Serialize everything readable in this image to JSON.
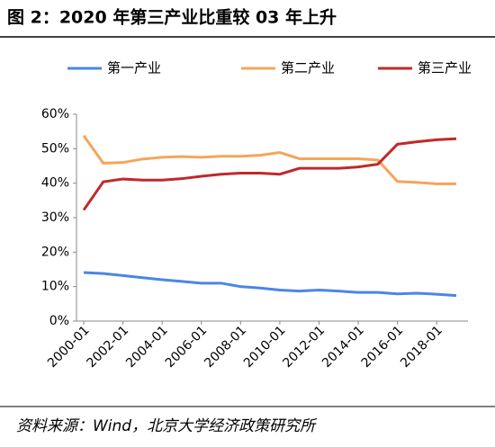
{
  "chart_data": {
    "type": "line",
    "title": "图 2：2020 年第三产业比重较 03 年上升",
    "source": "资料来源：Wind，北京大学经济政策研究所",
    "categories": [
      "2000-01",
      null,
      "2002-01",
      null,
      "2004-01",
      null,
      "2006-01",
      null,
      "2008-01",
      null,
      "2010-01",
      null,
      "2012-01",
      null,
      "2014-01",
      null,
      "2016-01",
      null,
      "2018-01",
      null
    ],
    "series": [
      {
        "name": "第一产业",
        "color": "#4a86e8",
        "values": [
          14.1,
          13.8,
          13.2,
          12.6,
          12.0,
          11.5,
          11.0,
          11.0,
          10.0,
          9.6,
          9.0,
          8.7,
          9.0,
          8.7,
          8.3,
          8.3,
          7.9,
          8.1,
          7.8,
          7.4
        ]
      },
      {
        "name": "第二产业",
        "color": "#f5a55a",
        "values": [
          53.8,
          45.8,
          46.0,
          47.0,
          47.5,
          47.7,
          47.5,
          47.8,
          47.8,
          48.1,
          48.9,
          47.1,
          47.1,
          47.1,
          47.1,
          46.7,
          40.5,
          40.2,
          39.8,
          39.8
        ]
      },
      {
        "name": "第三产业",
        "color": "#c0292b",
        "values": [
          32.2,
          40.4,
          41.2,
          40.9,
          40.9,
          41.3,
          42.0,
          42.6,
          42.9,
          42.9,
          42.6,
          44.3,
          44.3,
          44.3,
          44.7,
          45.5,
          51.3,
          52.0,
          52.6,
          52.9
        ]
      }
    ],
    "ylim": [
      0,
      60
    ],
    "yticks": [
      {
        "value": 0,
        "label": "0%"
      },
      {
        "value": 10,
        "label": "10%"
      },
      {
        "value": 20,
        "label": "20%"
      },
      {
        "value": 30,
        "label": "30%"
      },
      {
        "value": 40,
        "label": "40%"
      },
      {
        "value": 50,
        "label": "50%"
      },
      {
        "value": 60,
        "label": "60%"
      }
    ],
    "legend": "top"
  }
}
